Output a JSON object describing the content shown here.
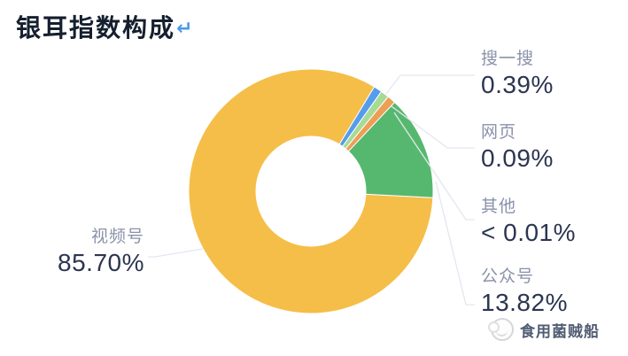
{
  "header": {
    "title": "银耳指数构成",
    "return_mark": "↵"
  },
  "chart_data": {
    "type": "pie",
    "subtype": "donut",
    "title": "银耳指数构成",
    "unit": "%",
    "start_angle_deg": 93,
    "min_render_angle_deg": 4,
    "legend_position": "callouts with leader lines (four on right, one on left)",
    "grid": false,
    "slices": [
      {
        "id": "video-channels",
        "label": "视频号",
        "value_pct": 85.7,
        "display": "85.70%",
        "color": "#F5BE48"
      },
      {
        "id": "search",
        "label": "搜一搜",
        "value_pct": 0.39,
        "display": "0.39%",
        "color": "#559CEC"
      },
      {
        "id": "others",
        "label": "其他",
        "value_pct": 0.01,
        "display": "< 0.01%",
        "qualifier": "less_than",
        "color": "#A7DB94"
      },
      {
        "id": "webpage",
        "label": "网页",
        "value_pct": 0.09,
        "display": "0.09%",
        "color": "#EC9F55"
      },
      {
        "id": "official-accounts",
        "label": "公众号",
        "value_pct": 13.82,
        "display": "13.82%",
        "color": "#56B86F"
      }
    ],
    "right_label_order": [
      "搜一搜",
      "网页",
      "其他",
      "公众号"
    ],
    "left_label": "视频号",
    "colors": {
      "leader_line": "#E4E6F0",
      "category_label": "#8A92AA",
      "value_label": "#2B3550",
      "background": "#FFFFFF"
    }
  },
  "watermark": {
    "text": "食用菌贼船",
    "logo": "circular-sketch-logo"
  }
}
